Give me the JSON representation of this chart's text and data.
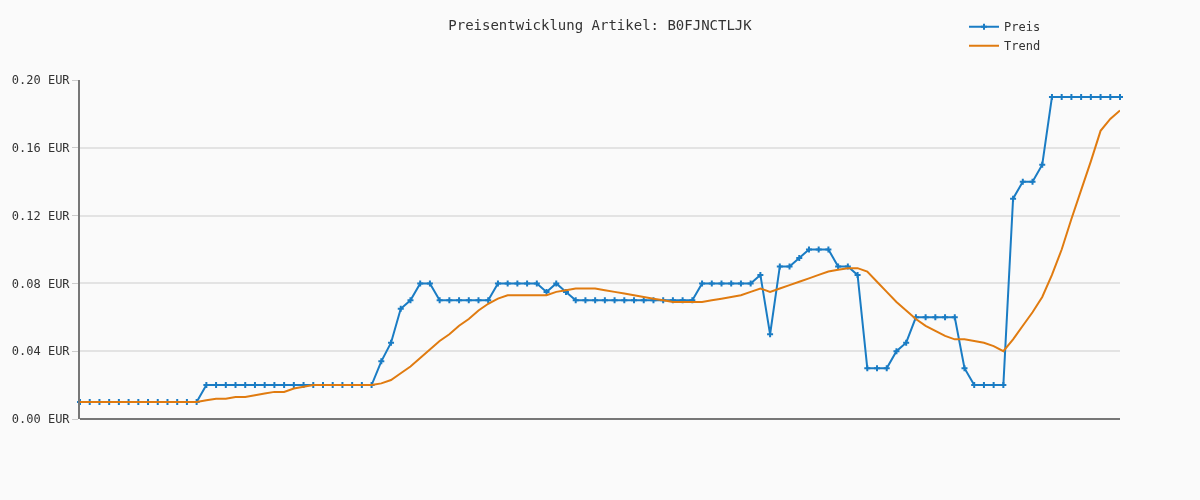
{
  "chart_data": {
    "type": "line",
    "title": "Preisentwicklung Artikel: B0FJNCTLJK",
    "categories": [
      null,
      null,
      null,
      null,
      null,
      null,
      null,
      null,
      null,
      null,
      null,
      null,
      null,
      null,
      null,
      null,
      null,
      null,
      null,
      null,
      null,
      null,
      null,
      null,
      null,
      null,
      null,
      null,
      null,
      null,
      null,
      null,
      null,
      null,
      null,
      null,
      null,
      null,
      null,
      null,
      null,
      null,
      null,
      null,
      null,
      null,
      null,
      null,
      null,
      null,
      null,
      null,
      null,
      null,
      null,
      null,
      null,
      null,
      null,
      null,
      null,
      null,
      null,
      null,
      null,
      null,
      null,
      null,
      null,
      null,
      null,
      null,
      null,
      null,
      null,
      null,
      null,
      null,
      null,
      null,
      null,
      null,
      null,
      null,
      null,
      null,
      null,
      null,
      null,
      null,
      null,
      null,
      null,
      null,
      null,
      null,
      null,
      null,
      null,
      null,
      null,
      null,
      null,
      null,
      null,
      null,
      null,
      null
    ],
    "series": [
      {
        "name": "Preis",
        "color": "#1a7cc4",
        "marker": "cross",
        "values": [
          0.01,
          0.01,
          0.01,
          0.01,
          0.01,
          0.01,
          0.01,
          0.01,
          0.01,
          0.01,
          0.01,
          0.01,
          0.01,
          0.02,
          0.02,
          0.02,
          0.02,
          0.02,
          0.02,
          0.02,
          0.02,
          0.02,
          0.02,
          0.02,
          0.02,
          0.02,
          0.02,
          0.02,
          0.02,
          0.02,
          0.02,
          0.034,
          0.045,
          0.065,
          0.07,
          0.08,
          0.08,
          0.07,
          0.07,
          0.07,
          0.07,
          0.07,
          0.07,
          0.08,
          0.08,
          0.08,
          0.08,
          0.08,
          0.075,
          0.08,
          0.075,
          0.07,
          0.07,
          0.07,
          0.07,
          0.07,
          0.07,
          0.07,
          0.07,
          0.07,
          0.07,
          0.07,
          0.07,
          0.07,
          0.08,
          0.08,
          0.08,
          0.08,
          0.08,
          0.08,
          0.085,
          0.05,
          0.09,
          0.09,
          0.095,
          0.1,
          0.1,
          0.1,
          0.09,
          0.09,
          0.085,
          0.03,
          0.03,
          0.03,
          0.04,
          0.045,
          0.06,
          0.06,
          0.06,
          0.06,
          0.06,
          0.03,
          0.02,
          0.02,
          0.02,
          0.02,
          0.13,
          0.14,
          0.14,
          0.15,
          0.19,
          0.19,
          0.19,
          0.19,
          0.19,
          0.19,
          0.19,
          0.19
        ]
      },
      {
        "name": "Trend",
        "color": "#e07b10",
        "marker": "none",
        "values": [
          0.01,
          0.01,
          0.01,
          0.01,
          0.01,
          0.01,
          0.01,
          0.01,
          0.01,
          0.01,
          0.01,
          0.01,
          0.01,
          0.011,
          0.012,
          0.012,
          0.013,
          0.013,
          0.014,
          0.015,
          0.016,
          0.016,
          0.018,
          0.019,
          0.02,
          0.02,
          0.02,
          0.02,
          0.02,
          0.02,
          0.02,
          0.021,
          0.023,
          0.027,
          0.031,
          0.036,
          0.041,
          0.046,
          0.05,
          0.055,
          0.059,
          0.064,
          0.068,
          0.071,
          0.073,
          0.073,
          0.073,
          0.073,
          0.073,
          0.075,
          0.076,
          0.077,
          0.077,
          0.077,
          0.076,
          0.075,
          0.074,
          0.073,
          0.072,
          0.071,
          0.07,
          0.069,
          0.069,
          0.069,
          0.069,
          0.07,
          0.071,
          0.072,
          0.073,
          0.075,
          0.077,
          0.075,
          0.077,
          0.079,
          0.081,
          0.083,
          0.085,
          0.087,
          0.088,
          0.089,
          0.089,
          0.087,
          0.081,
          0.075,
          0.069,
          0.064,
          0.059,
          0.055,
          0.052,
          0.049,
          0.047,
          0.047,
          0.046,
          0.045,
          0.043,
          0.04,
          0.047,
          0.055,
          0.063,
          0.072,
          0.085,
          0.1,
          0.118,
          0.135,
          0.152,
          0.17,
          0.177,
          0.182
        ]
      }
    ],
    "ylim": [
      0,
      0.2
    ],
    "yticks": [
      {
        "value": 0,
        "label": "0.00 EUR"
      },
      {
        "value": 0.04,
        "label": "0.04 EUR"
      },
      {
        "value": 0.08,
        "label": "0.08 EUR"
      },
      {
        "value": 0.12,
        "label": "0.12 EUR"
      },
      {
        "value": 0.16,
        "label": "0.16 EUR"
      },
      {
        "value": 0.2,
        "label": "0.20 EUR"
      }
    ],
    "grid": "y",
    "legend": "top right",
    "line_style": "solid"
  }
}
